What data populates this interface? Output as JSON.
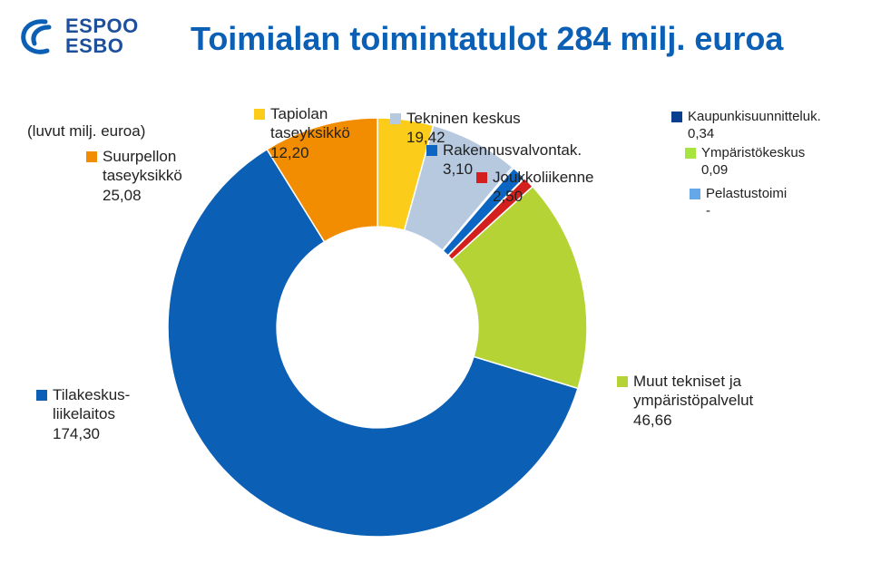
{
  "header": {
    "logo_line1": "ESPOO",
    "logo_line2": "ESBO",
    "title": "Toimialan toimintatulot 284 milj. euroa",
    "title_color": "#0b5fb5",
    "subtitle": "(luvut milj. euroa)"
  },
  "chart": {
    "type": "donut",
    "background_color": "#ffffff",
    "inner_radius": 0.48,
    "outer_radius": 1.0,
    "start_angle_deg": -90,
    "direction": "clockwise",
    "slices": [
      {
        "key": "tapiolan",
        "label": "Tapiolan taseyksikkö",
        "value": 12.2,
        "color": "#fccc1a"
      },
      {
        "key": "tekninen",
        "label": "Tekninen keskus",
        "value": 19.42,
        "color": "#b6c9de"
      },
      {
        "key": "kaupunki",
        "label": "Kaupunkisuunnitteluk.",
        "value": 0.34,
        "color": "#0a3f8f"
      },
      {
        "key": "rakennus",
        "label": "Rakennusvalvontak.",
        "value": 3.1,
        "color": "#0b65c2"
      },
      {
        "key": "ymparisto",
        "label": "Ympäristökeskus",
        "value": 0.09,
        "color": "#a7e43f"
      },
      {
        "key": "joukko",
        "label": "Joukkoliikenne",
        "value": 2.5,
        "color": "#d41f1f"
      },
      {
        "key": "pelastus",
        "label": "Pelastustoimi",
        "value": 0.0,
        "color": "#65a7e8"
      },
      {
        "key": "muut",
        "label": "Muut tekniset ja ympäristöpalvelut",
        "value": 46.66,
        "color": "#b5d334"
      },
      {
        "key": "tilakeskus",
        "label": "Tilakeskus-liikelaitos",
        "value": 174.3,
        "color": "#0b5fb5"
      },
      {
        "key": "suurpellon",
        "label": "Suurpellon taseyksikkö",
        "value": 25.08,
        "color": "#f28c00"
      }
    ]
  },
  "labels": {
    "tapiolan": {
      "line1": "Tapiolan",
      "line2": "taseyksikkö",
      "value": "12,20"
    },
    "tekninen": {
      "line1": "Tekninen keskus",
      "value": "19,42"
    },
    "kaupunki": {
      "line1": "Kaupunkisuunnitteluk.",
      "value": "0,34"
    },
    "rakennus": {
      "line1": "Rakennusvalvontak.",
      "value": "3,10"
    },
    "ymparisto": {
      "line1": "Ympäristökeskus",
      "value": "0,09"
    },
    "joukko": {
      "line1": "Joukkoliikenne",
      "value": "2,50"
    },
    "pelastus": {
      "line1": "Pelastustoimi",
      "value": "-"
    },
    "muut": {
      "line1": "Muut tekniset ja",
      "line2": "ympäristöpalvelut",
      "value": "46,66"
    },
    "tilakeskus": {
      "line1": "Tilakeskus-",
      "line2": "liikelaitos",
      "value": "174,30"
    },
    "suurpellon": {
      "line1": "Suurpellon",
      "line2": "taseyksikkö",
      "value": "25,08"
    }
  }
}
